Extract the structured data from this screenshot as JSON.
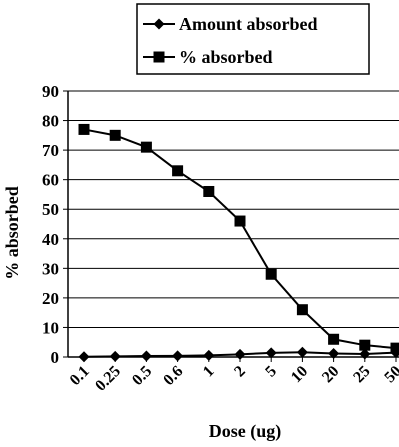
{
  "chart_data": {
    "type": "line",
    "title": "",
    "xlabel": "Dose (ug)",
    "ylabel": "% absorbed",
    "categories": [
      "0.1",
      "0.25",
      "0.5",
      "0.6",
      "1",
      "2",
      "5",
      "10",
      "20",
      "25",
      "50"
    ],
    "ylim": [
      0,
      90
    ],
    "yticks": [
      0,
      10,
      20,
      30,
      40,
      50,
      60,
      70,
      80,
      90
    ],
    "grid": true,
    "legend_position": "top",
    "series": [
      {
        "name": "Amount absorbed",
        "marker": "diamond",
        "color": "#000000",
        "values": [
          0.1,
          0.2,
          0.35,
          0.4,
          0.55,
          0.9,
          1.4,
          1.6,
          1.2,
          1.0,
          1.5
        ]
      },
      {
        "name": "% absorbed",
        "marker": "square",
        "color": "#000000",
        "values": [
          77,
          75,
          71,
          63,
          56,
          46,
          28,
          16,
          6,
          4,
          3
        ]
      }
    ]
  }
}
